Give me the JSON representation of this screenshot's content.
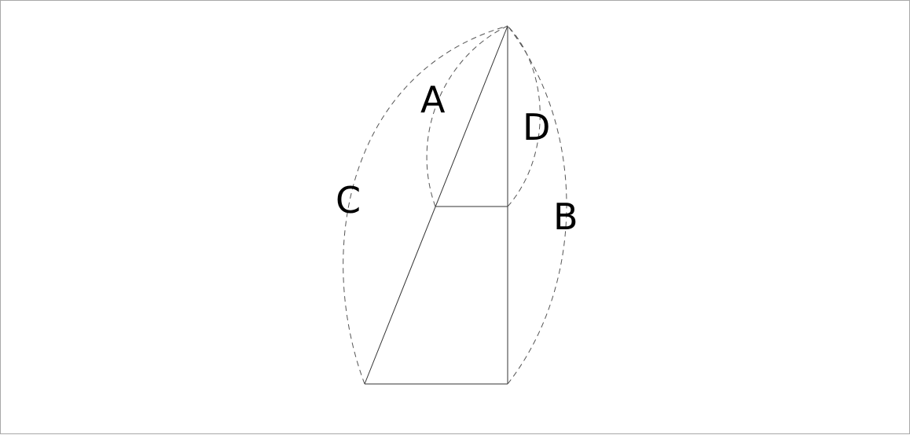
{
  "diagram": {
    "labels": {
      "a": "A",
      "b": "B",
      "c": "C",
      "d": "D"
    }
  }
}
